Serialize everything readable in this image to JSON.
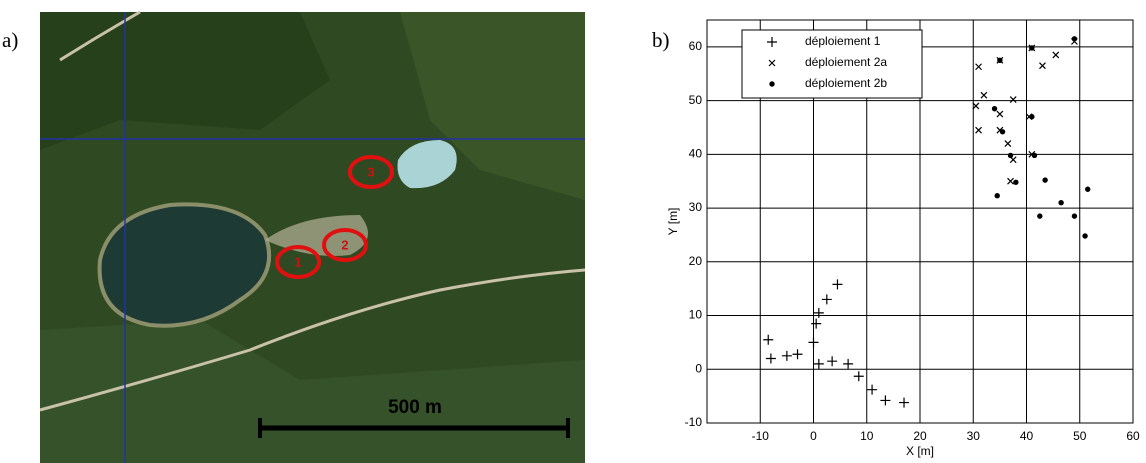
{
  "panels": {
    "a": "a)",
    "b": "b)"
  },
  "map": {
    "scale_label": "500 m",
    "site_labels": [
      "1",
      "2",
      "3"
    ]
  },
  "chart_data": {
    "type": "scatter",
    "xlabel": "X [m]",
    "ylabel": "Y [m]",
    "xlim": [
      -20,
      60
    ],
    "ylim": [
      -10,
      65
    ],
    "xticks": [
      -10,
      0,
      10,
      20,
      30,
      40,
      50,
      60
    ],
    "yticks": [
      -10,
      0,
      10,
      20,
      30,
      40,
      50,
      60
    ],
    "grid": true,
    "legend": "upper left",
    "series": [
      {
        "name": "déploiement 1",
        "color": "#000000",
        "marker": "+",
        "x": [
          -8.5,
          -8,
          -5,
          -3,
          0,
          0.5,
          1,
          2.5,
          4.5,
          1,
          3.5,
          6.5,
          8.5,
          11,
          13.5,
          17
        ],
        "values": [
          5.5,
          2,
          2.5,
          2.8,
          5,
          8.5,
          10.5,
          13,
          15.8,
          1,
          1.5,
          1,
          -1.3,
          -3.8,
          -5.8,
          -6.2
        ]
      },
      {
        "name": "déploiement 2a",
        "color": "#000000",
        "marker": "x",
        "x": [
          31,
          35,
          43,
          45.5,
          49,
          41,
          30.5,
          32,
          35,
          37.5,
          31,
          35,
          36.5,
          37.5,
          37,
          41,
          40.5
        ],
        "values": [
          56.3,
          57.5,
          56.5,
          58.5,
          61,
          59.8,
          49,
          51,
          47.5,
          50.2,
          44.5,
          44.5,
          42,
          39,
          35,
          40,
          47
        ]
      },
      {
        "name": "déploiement 2b",
        "color": "#000000",
        "marker": "o",
        "x": [
          35,
          41,
          49,
          34,
          35.5,
          37,
          41,
          41.5,
          38,
          43.5,
          46.5,
          51.5,
          34.5,
          42.5,
          49,
          51
        ],
        "values": [
          57.5,
          59.8,
          61.5,
          48.5,
          44.2,
          39.8,
          47,
          39.8,
          34.8,
          35.2,
          31,
          33.5,
          32.3,
          28.5,
          28.5,
          24.8
        ]
      }
    ]
  }
}
